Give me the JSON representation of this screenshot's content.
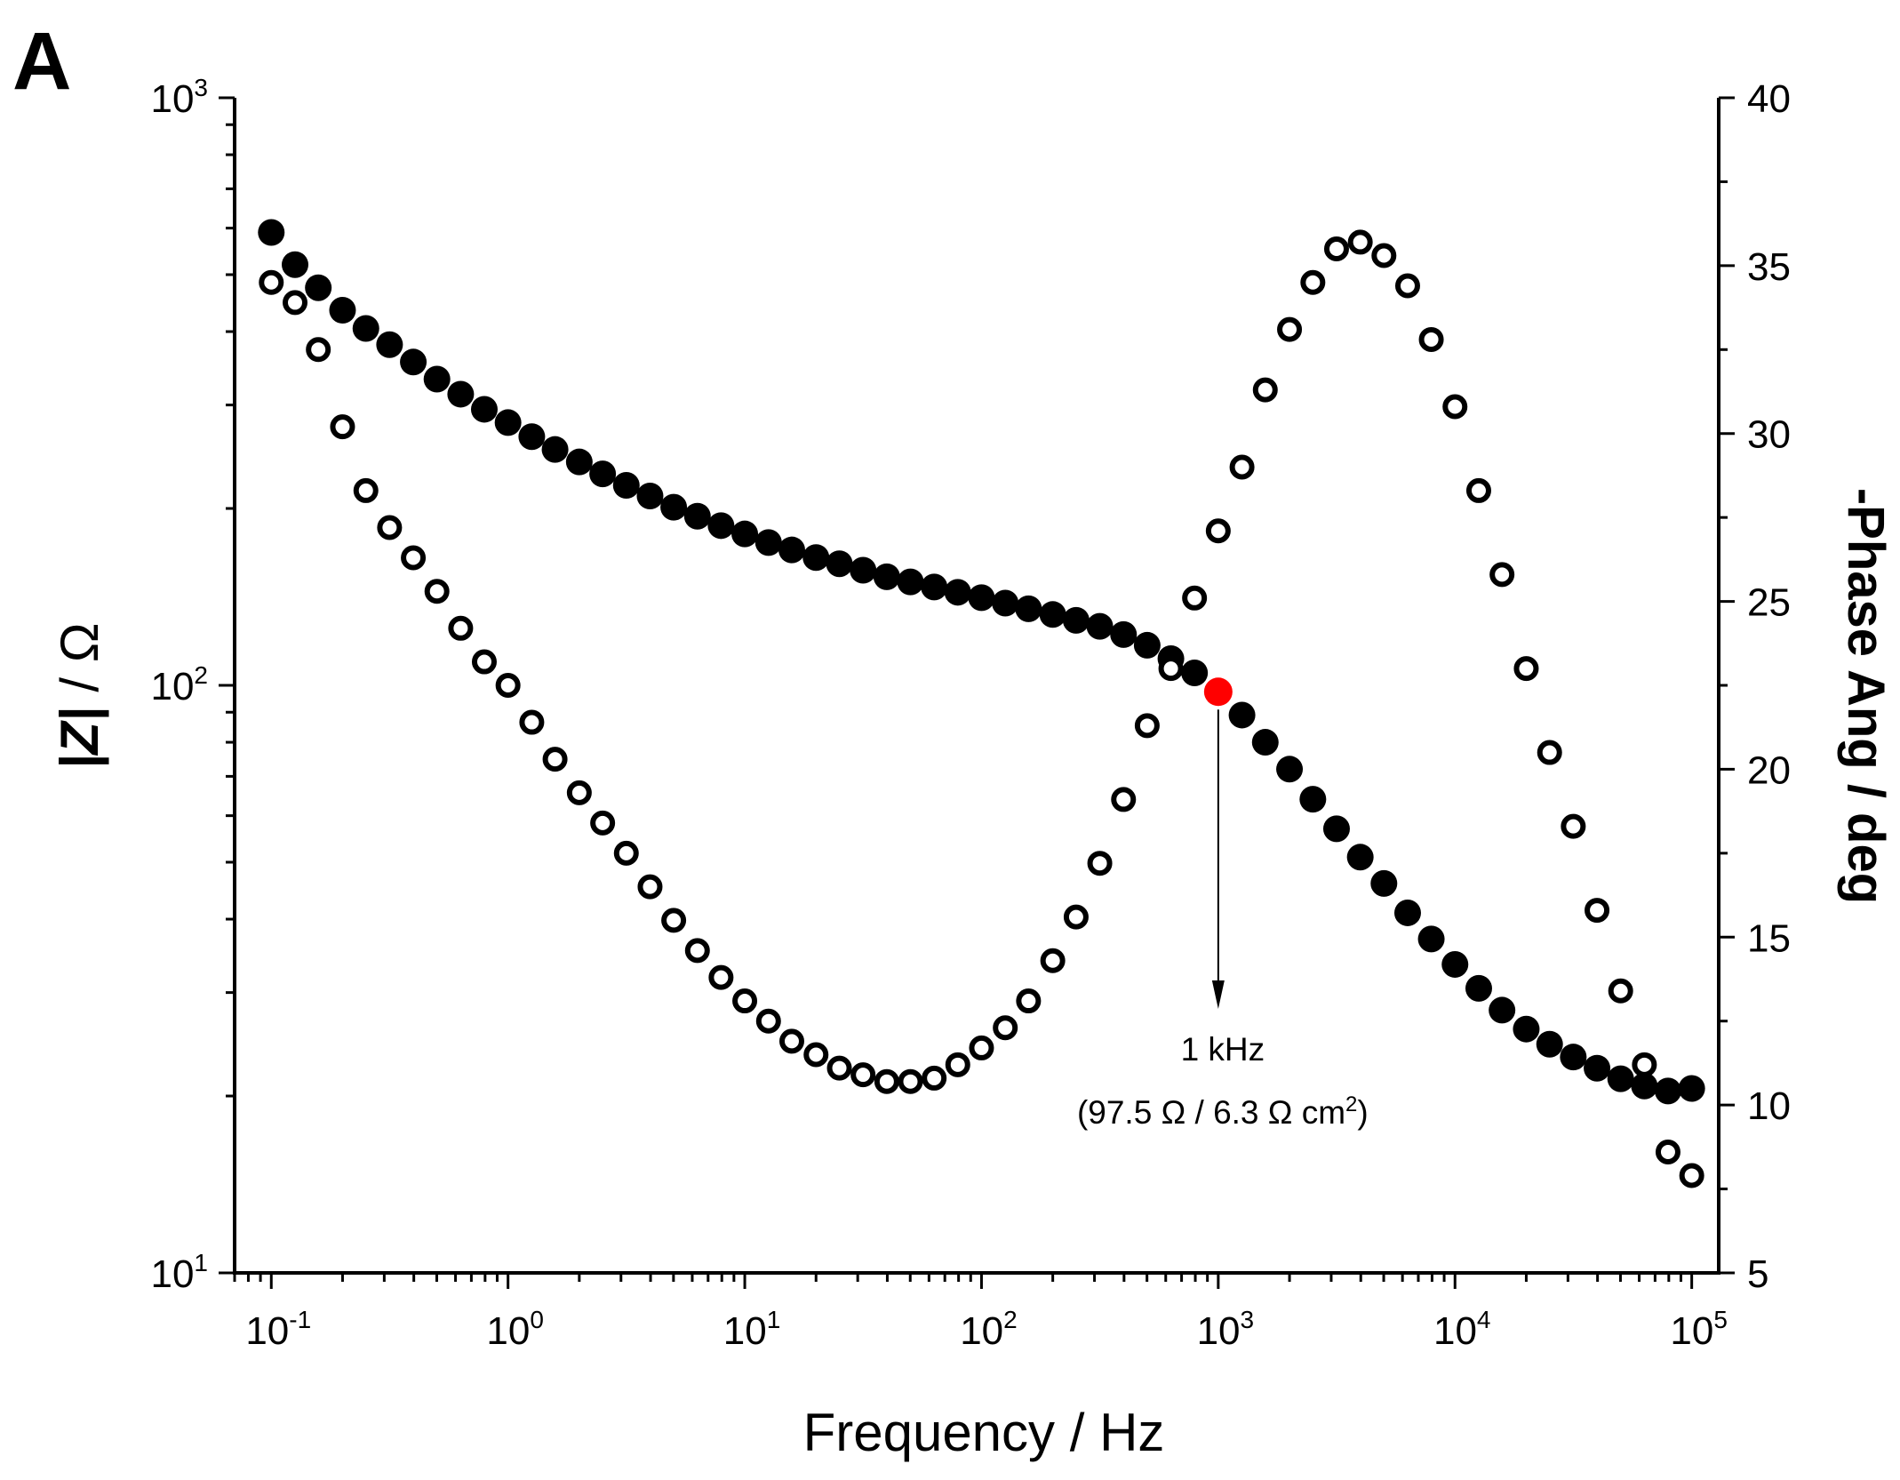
{
  "panel_label": "A",
  "annotation": {
    "label": "1 kHz",
    "detail_prefix": "(97.5 Ω / 6.3 Ω cm",
    "detail_sup": "2",
    "detail_suffix": ")",
    "x": 1000
  },
  "colors": {
    "axis": "#000000",
    "filled_marker": "#000000",
    "open_marker_stroke": "#000000",
    "highlight_marker": "#ff0000"
  },
  "chart_data": {
    "type": "scatter",
    "x_scale": "log",
    "xlabel": "Frequency / Hz",
    "xlim": [
      0.07,
      130000
    ],
    "x_ticks": [
      {
        "base": "10",
        "exp": "-1",
        "value": 0.1
      },
      {
        "base": "10",
        "exp": "0",
        "value": 1
      },
      {
        "base": "10",
        "exp": "1",
        "value": 10
      },
      {
        "base": "10",
        "exp": "2",
        "value": 100
      },
      {
        "base": "10",
        "exp": "3",
        "value": 1000
      },
      {
        "base": "10",
        "exp": "4",
        "value": 10000
      },
      {
        "base": "10",
        "exp": "5",
        "value": 100000
      }
    ],
    "y_left": {
      "label_abs": "|Z|",
      "label_rest": " / Ω",
      "scale": "log",
      "ylim": [
        10,
        1000
      ],
      "ticks": [
        {
          "base": "10",
          "exp": "1",
          "value": 10
        },
        {
          "base": "10",
          "exp": "2",
          "value": 100
        },
        {
          "base": "10",
          "exp": "3",
          "value": 1000
        }
      ]
    },
    "y_right": {
      "label": "-Phase Ang / deg",
      "scale": "linear",
      "ylim": [
        5,
        40
      ],
      "ticks": [
        "5",
        "10",
        "15",
        "20",
        "25",
        "30",
        "35",
        "40"
      ]
    },
    "series": [
      {
        "name": "|Z|",
        "axis": "left",
        "marker": "filled circle",
        "x": [
          0.1,
          0.126,
          0.158,
          0.2,
          0.251,
          0.316,
          0.398,
          0.501,
          0.631,
          0.794,
          1,
          1.26,
          1.58,
          2,
          2.51,
          3.16,
          3.98,
          5.01,
          6.31,
          7.94,
          10,
          12.6,
          15.8,
          20,
          25.1,
          31.6,
          39.8,
          50.1,
          63.1,
          79.4,
          100,
          126,
          158,
          200,
          251,
          316,
          398,
          501,
          631,
          794,
          1260,
          1580,
          2000,
          2510,
          3160,
          3980,
          5010,
          6310,
          7940,
          10000,
          12600,
          15800,
          20000,
          25100,
          31600,
          39800,
          50100,
          63100,
          79400,
          100000
        ],
        "values": [
          590,
          520,
          475,
          435,
          405,
          380,
          355,
          332,
          313,
          295,
          280,
          265,
          252,
          240,
          229,
          219,
          210,
          201,
          194,
          187,
          181,
          175,
          170,
          165,
          161,
          157,
          153,
          150,
          147,
          144,
          141,
          138,
          135,
          132,
          129,
          126,
          122,
          117,
          111,
          105,
          89,
          80,
          72,
          64,
          57,
          51,
          46,
          41,
          37,
          33.5,
          30.5,
          28,
          26,
          24.5,
          23.3,
          22.3,
          21.4,
          20.8,
          20.4,
          20.6
        ]
      },
      {
        "name": "|Z| at 1 kHz",
        "axis": "left",
        "marker": "filled circle (red)",
        "x": [
          1000
        ],
        "values": [
          97.5
        ]
      },
      {
        "name": "-Phase Ang",
        "axis": "right",
        "marker": "open circle",
        "x": [
          0.1,
          0.126,
          0.158,
          0.2,
          0.251,
          0.316,
          0.398,
          0.501,
          0.631,
          0.794,
          1,
          1.26,
          1.58,
          2,
          2.51,
          3.16,
          3.98,
          5.01,
          6.31,
          7.94,
          10,
          12.6,
          15.8,
          20,
          25.1,
          31.6,
          39.8,
          50.1,
          63.1,
          79.4,
          100,
          126,
          158,
          200,
          251,
          316,
          398,
          501,
          631,
          794,
          1000,
          1260,
          1580,
          2000,
          2510,
          3160,
          3980,
          5010,
          6310,
          7940,
          10000,
          12600,
          15800,
          20000,
          25100,
          31600,
          39800,
          50100,
          63100,
          79400,
          100000
        ],
        "values": [
          34.5,
          33.9,
          32.5,
          30.2,
          28.3,
          27.2,
          26.3,
          25.3,
          24.2,
          23.2,
          22.5,
          21.4,
          20.3,
          19.3,
          18.4,
          17.5,
          16.5,
          15.5,
          14.6,
          13.8,
          13.1,
          12.5,
          11.9,
          11.5,
          11.1,
          10.9,
          10.7,
          10.7,
          10.8,
          11.2,
          11.7,
          12.3,
          13.1,
          14.3,
          15.6,
          17.2,
          19.1,
          21.3,
          23.0,
          25.1,
          27.1,
          29.0,
          31.3,
          33.1,
          34.5,
          35.5,
          35.7,
          35.3,
          34.4,
          32.8,
          30.8,
          28.3,
          25.8,
          23.0,
          20.5,
          18.3,
          15.8,
          13.4,
          11.2,
          8.6,
          7.9
        ]
      }
    ]
  }
}
